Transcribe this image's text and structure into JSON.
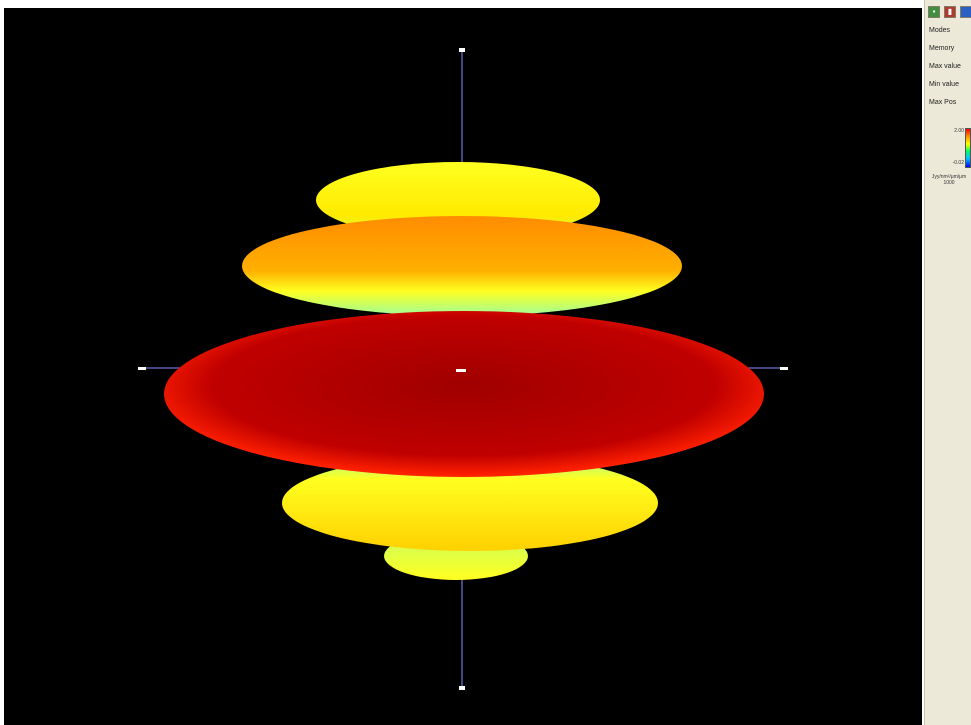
{
  "side_panel": {
    "toolbar_icons": [
      "save-icon",
      "bar-chart-icon",
      "blue-square-icon"
    ],
    "properties": [
      {
        "name": "mode",
        "label": "Modes"
      },
      {
        "name": "memory",
        "label": "Memory"
      },
      {
        "name": "max-value",
        "label": "Max value"
      },
      {
        "name": "min-value",
        "label": "Min value"
      },
      {
        "name": "max-pos",
        "label": "Max Pos"
      }
    ],
    "colorbar": {
      "top_value": "2.00",
      "bottom_value": "-0.02",
      "colors": [
        "#ff0000",
        "#ffa000",
        "#ffff00",
        "#00ff60",
        "#00c0ff",
        "#0000ff"
      ]
    },
    "unit_label": "Jyy/nm²/μm/μm",
    "unit_sub": "1000"
  },
  "viewport": {
    "background": "#000000",
    "axis_color": "#5a5fb0",
    "lobe_colors": {
      "center": "#a00000",
      "edge_red": "#ff1e00",
      "orange": "#ff8c00",
      "yellow": "#ffff20",
      "green": "#9cff9c"
    }
  }
}
